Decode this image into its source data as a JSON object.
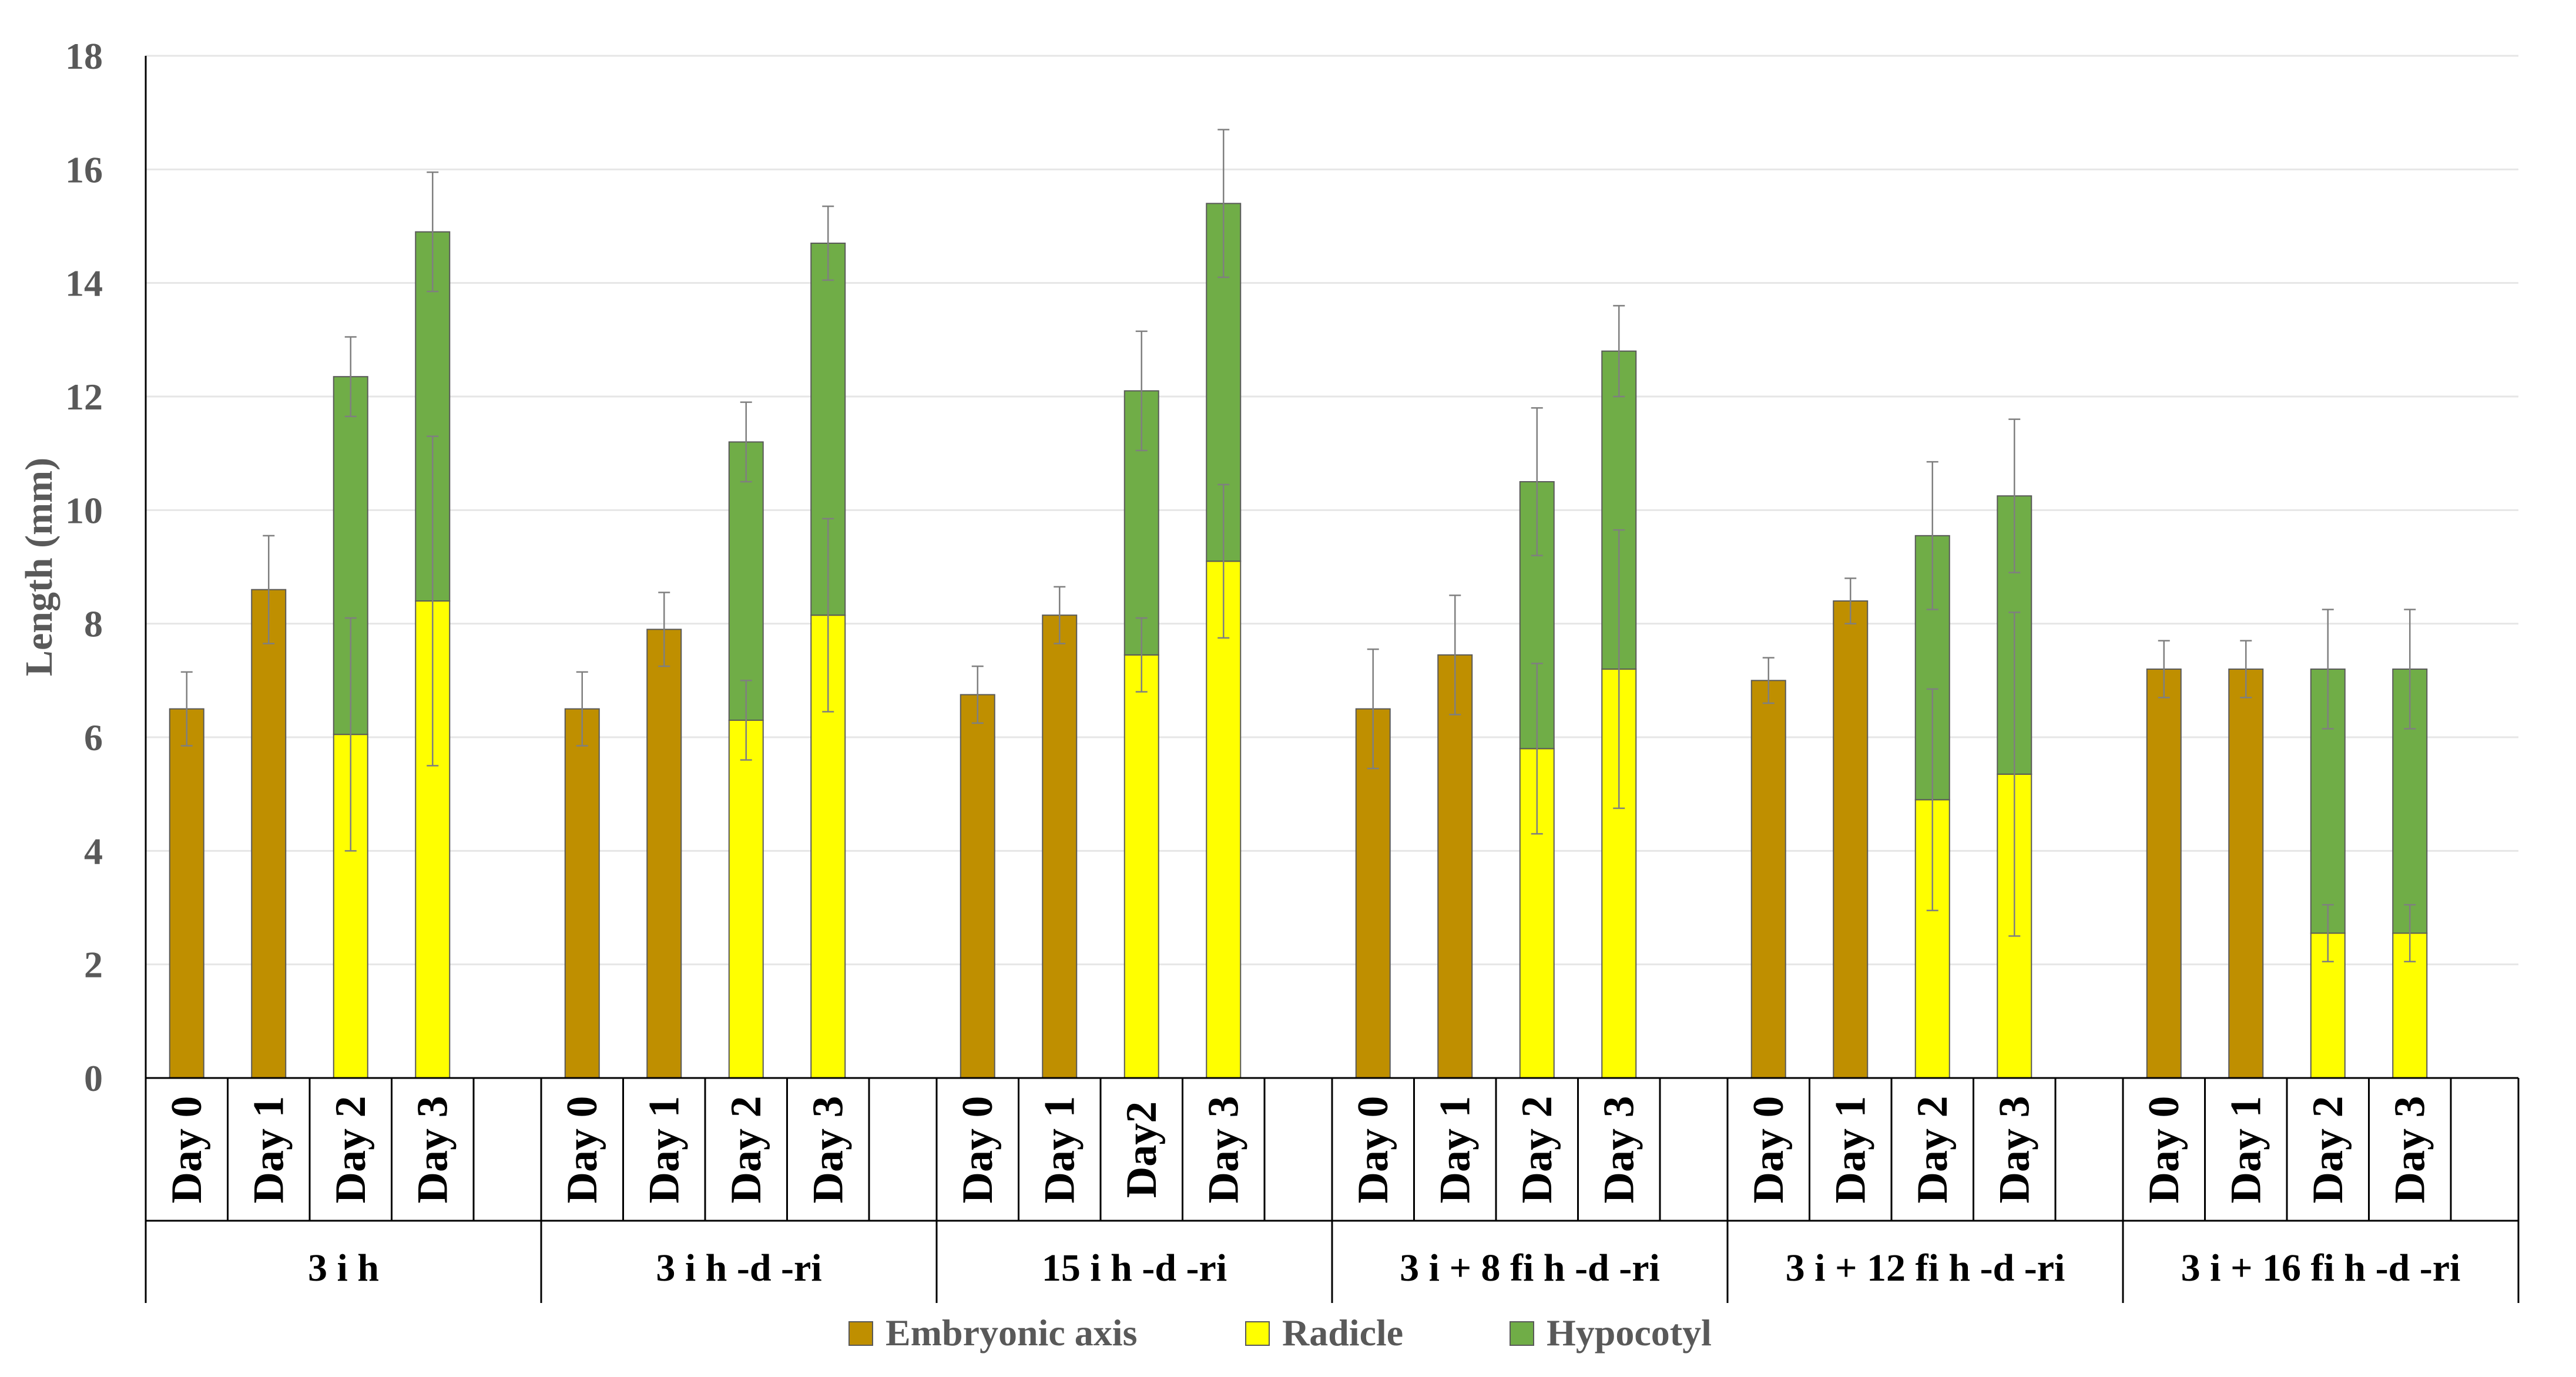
{
  "chart_data": {
    "type": "bar",
    "stacked": true,
    "ylabel": "Length (mm)",
    "xlabel": "",
    "ylim": [
      0,
      18
    ],
    "yticks": [
      0,
      2,
      4,
      6,
      8,
      10,
      12,
      14,
      16,
      18
    ],
    "grid": true,
    "legend_position": "bottom",
    "colors": {
      "embryonic": "#bf8f00",
      "radicle": "#ffff00",
      "hypocotyl": "#70ad47",
      "bar_stroke": "#595959",
      "error_bar": "#7f7f7f",
      "gridline": "#e6e6e6",
      "axis": "#000000",
      "tick_text": "#595959"
    },
    "legend": [
      {
        "key": "embryonic",
        "label": "Embryonic axis"
      },
      {
        "key": "radicle",
        "label": "Radicle"
      },
      {
        "key": "hypocotyl",
        "label": "Hypocotyl"
      }
    ],
    "groups": [
      {
        "label": "3 i h",
        "bars": [
          {
            "label": "Day 0",
            "embryonic": 6.5,
            "embryonic_err": 0.65
          },
          {
            "label": "Day 1",
            "embryonic": 8.6,
            "embryonic_err": 0.95
          },
          {
            "label": "Day 2",
            "radicle": 6.05,
            "radicle_err": 2.05,
            "hypocotyl": 6.3,
            "hypocotyl_err": 0.7
          },
          {
            "label": "Day 3",
            "radicle": 8.4,
            "radicle_err": 2.9,
            "hypocotyl": 6.5,
            "hypocotyl_err": 1.05
          }
        ]
      },
      {
        "label": "3 i h -d -ri",
        "bars": [
          {
            "label": "Day 0",
            "embryonic": 6.5,
            "embryonic_err": 0.65
          },
          {
            "label": "Day 1",
            "embryonic": 7.9,
            "embryonic_err": 0.65
          },
          {
            "label": "Day 2",
            "radicle": 6.3,
            "radicle_err": 0.7,
            "hypocotyl": 4.9,
            "hypocotyl_err": 0.7
          },
          {
            "label": "Day 3",
            "radicle": 8.15,
            "radicle_err": 1.7,
            "hypocotyl": 6.55,
            "hypocotyl_err": 0.65
          }
        ]
      },
      {
        "label": "15 i h -d -ri",
        "bars": [
          {
            "label": "Day 0",
            "embryonic": 6.75,
            "embryonic_err": 0.5
          },
          {
            "label": "Day 1",
            "embryonic": 8.15,
            "embryonic_err": 0.5
          },
          {
            "label": "Day2",
            "radicle": 7.45,
            "radicle_err": 0.65,
            "hypocotyl": 4.65,
            "hypocotyl_err": 1.05
          },
          {
            "label": "Day 3",
            "radicle": 9.1,
            "radicle_err": 1.35,
            "hypocotyl": 6.3,
            "hypocotyl_err": 1.3
          }
        ]
      },
      {
        "label": "3 i + 8 fi h -d -ri",
        "bars": [
          {
            "label": "Day 0",
            "embryonic": 6.5,
            "embryonic_err": 1.05
          },
          {
            "label": "Day 1",
            "embryonic": 7.45,
            "embryonic_err": 1.05
          },
          {
            "label": "Day 2",
            "radicle": 5.8,
            "radicle_err": 1.5,
            "hypocotyl": 4.7,
            "hypocotyl_err": 1.3
          },
          {
            "label": "Day 3",
            "radicle": 7.2,
            "radicle_err": 2.45,
            "hypocotyl": 5.6,
            "hypocotyl_err": 0.8
          }
        ]
      },
      {
        "label": "3 i + 12 fi h -d -ri",
        "bars": [
          {
            "label": "Day 0",
            "embryonic": 7.0,
            "embryonic_err": 0.4
          },
          {
            "label": "Day 1",
            "embryonic": 8.4,
            "embryonic_err": 0.4
          },
          {
            "label": "Day 2",
            "radicle": 4.9,
            "radicle_err": 1.95,
            "hypocotyl": 4.65,
            "hypocotyl_err": 1.3
          },
          {
            "label": "Day 3",
            "radicle": 5.35,
            "radicle_err": 2.85,
            "hypocotyl": 4.9,
            "hypocotyl_err": 1.35
          }
        ]
      },
      {
        "label": "3 i + 16 fi h -d -ri",
        "bars": [
          {
            "label": "Day 0",
            "embryonic": 7.2,
            "embryonic_err": 0.5
          },
          {
            "label": "Day 1",
            "embryonic": 7.2,
            "embryonic_err": 0.5
          },
          {
            "label": "Day 2",
            "radicle": 2.55,
            "radicle_err": 0.5,
            "hypocotyl": 4.65,
            "hypocotyl_err": 1.05
          },
          {
            "label": "Day 3",
            "radicle": 2.55,
            "radicle_err": 0.5,
            "hypocotyl": 4.65,
            "hypocotyl_err": 1.05
          }
        ]
      }
    ]
  }
}
